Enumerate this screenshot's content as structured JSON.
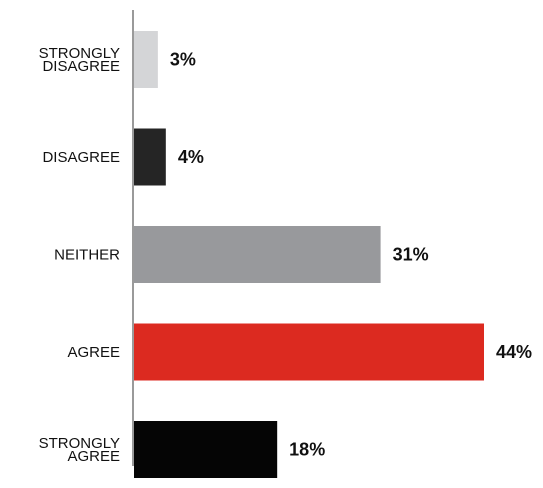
{
  "chart_data": {
    "type": "bar",
    "orientation": "horizontal",
    "categories": [
      [
        "STRONGLY",
        "DISAGREE"
      ],
      [
        "DISAGREE"
      ],
      [
        "NEITHER"
      ],
      [
        "AGREE"
      ],
      [
        "STRONGLY",
        "AGREE"
      ]
    ],
    "values": [
      3,
      4,
      31,
      44,
      18
    ],
    "value_labels": [
      "3%",
      "4%",
      "31%",
      "44%",
      "18%"
    ],
    "colors": [
      "#d4d5d7",
      "#252525",
      "#98999c",
      "#dc2a20",
      "#050505"
    ],
    "axis_color": "#9a9a9a",
    "xlim": [
      0,
      44
    ],
    "grid": false,
    "legend": "none"
  }
}
